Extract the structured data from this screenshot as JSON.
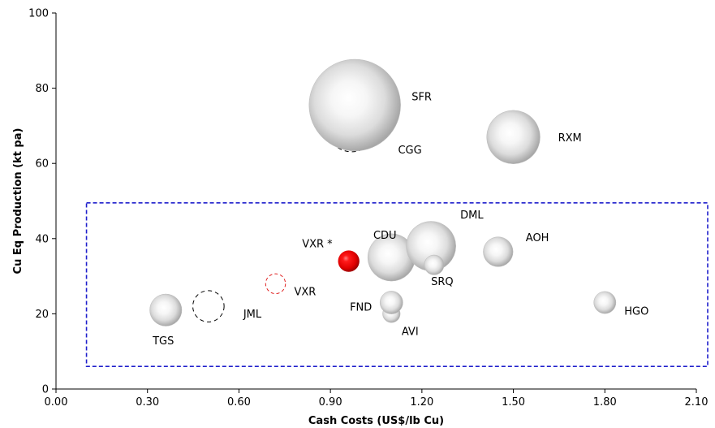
{
  "chart_data": {
    "type": "scatter",
    "subtype": "bubble",
    "xlabel": "Cash Costs (US$/lb Cu)",
    "ylabel": "Cu Eq Production (kt pa)",
    "xlim": [
      0,
      2.1
    ],
    "ylim": [
      0,
      100
    ],
    "xticks": [
      "0.00",
      "0.30",
      "0.60",
      "0.90",
      "1.20",
      "1.50",
      "1.80",
      "2.10"
    ],
    "xtick_values": [
      0,
      0.3,
      0.6,
      0.9,
      1.2,
      1.5,
      1.8,
      2.1
    ],
    "yticks": [
      "0",
      "20",
      "40",
      "60",
      "80",
      "100"
    ],
    "ytick_values": [
      0,
      20,
      40,
      60,
      80,
      100
    ],
    "grid": false,
    "legend": "none",
    "points": [
      {
        "label": "SFR",
        "x": 0.98,
        "y": 75.5,
        "size": 12.0,
        "style": "grey"
      },
      {
        "label": "CGG",
        "x": 0.97,
        "y": 70.0,
        "size": 6.8,
        "style": "dashed-black"
      },
      {
        "label": "RXM",
        "x": 1.5,
        "y": 67.0,
        "size": 7.0,
        "style": "grey"
      },
      {
        "label": "CDU",
        "x": 1.1,
        "y": 35.0,
        "size": 6.2,
        "style": "grey"
      },
      {
        "label": "DML",
        "x": 1.23,
        "y": 38.0,
        "size": 6.5,
        "style": "grey"
      },
      {
        "label": "VXR *",
        "x": 0.96,
        "y": 34.0,
        "size": 2.8,
        "style": "red"
      },
      {
        "label": "SRQ",
        "x": 1.24,
        "y": 33.0,
        "size": 2.6,
        "style": "grey"
      },
      {
        "label": "AOH",
        "x": 1.45,
        "y": 36.5,
        "size": 3.9,
        "style": "grey"
      },
      {
        "label": "VXR",
        "x": 0.72,
        "y": 28.0,
        "size": 2.6,
        "style": "dashed-red"
      },
      {
        "label": "FND",
        "x": 1.1,
        "y": 23.0,
        "size": 3.0,
        "style": "grey"
      },
      {
        "label": "AVI",
        "x": 1.1,
        "y": 20.0,
        "size": 2.3,
        "style": "grey"
      },
      {
        "label": "TGS",
        "x": 0.36,
        "y": 21.0,
        "size": 4.2,
        "style": "grey"
      },
      {
        "label": "JML",
        "x": 0.5,
        "y": 22.0,
        "size": 4.1,
        "style": "dashed-black"
      },
      {
        "label": "HGO",
        "x": 1.8,
        "y": 23.0,
        "size": 2.9,
        "style": "grey"
      }
    ],
    "annotation_box": {
      "x": [
        0.1,
        2.1
      ],
      "y": [
        6,
        49.5
      ],
      "style": "dashed-blue"
    }
  },
  "colors": {
    "axis": "#000000",
    "grey_dark": "#9a9a9a",
    "grey_light": "#ffffff",
    "red_dark": "#b00000",
    "red_light": "#ff2020",
    "box": "#1f1fcc",
    "dashed_red": "#e02020"
  }
}
